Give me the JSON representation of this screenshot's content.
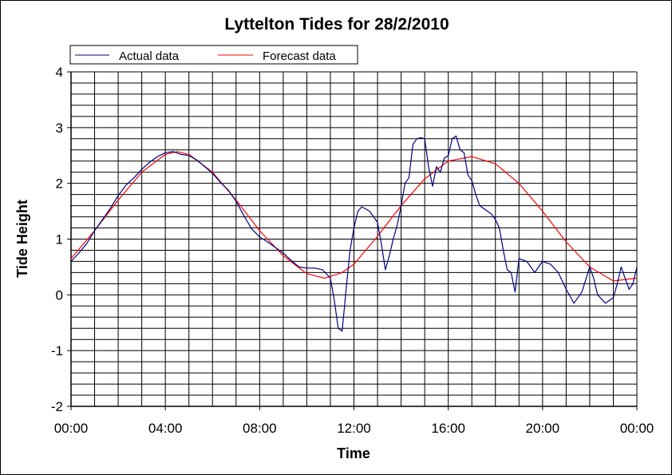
{
  "chart_data": {
    "type": "line",
    "title": "Lyttelton Tides for 28/2/2010",
    "xlabel": "Time",
    "ylabel": "Tide Height",
    "xlim": [
      "00:00",
      "24:00"
    ],
    "ylim": [
      -2,
      4
    ],
    "x_tick_labels": [
      "00:00",
      "04:00",
      "08:00",
      "12:00",
      "16:00",
      "20:00",
      "00:00"
    ],
    "x_tick_hours": [
      0,
      4,
      8,
      12,
      16,
      20,
      24
    ],
    "y_ticks": [
      4,
      3,
      2,
      1,
      0,
      -1,
      -2
    ],
    "grid": true,
    "legend_position": "top-left",
    "series": [
      {
        "name": "Actual data",
        "color": "#000080",
        "x": [
          "00:00",
          "00:20",
          "00:40",
          "01:00",
          "01:20",
          "01:40",
          "02:00",
          "02:20",
          "02:40",
          "03:00",
          "03:20",
          "03:40",
          "04:00",
          "04:20",
          "04:40",
          "05:00",
          "05:20",
          "05:40",
          "06:00",
          "06:20",
          "06:40",
          "07:00",
          "07:20",
          "07:40",
          "08:00",
          "08:20",
          "08:40",
          "09:00",
          "09:20",
          "09:40",
          "10:00",
          "10:20",
          "10:40",
          "11:00",
          "11:10",
          "11:20",
          "11:30",
          "11:40",
          "11:50",
          "12:00",
          "12:10",
          "12:20",
          "12:40",
          "13:00",
          "13:10",
          "13:20",
          "13:30",
          "13:40",
          "13:50",
          "14:00",
          "14:10",
          "14:20",
          "14:30",
          "14:40",
          "14:50",
          "15:00",
          "15:10",
          "15:20",
          "15:30",
          "15:40",
          "15:50",
          "16:00",
          "16:10",
          "16:20",
          "16:30",
          "16:40",
          "16:50",
          "17:00",
          "17:10",
          "17:20",
          "17:30",
          "17:40",
          "17:50",
          "18:00",
          "18:10",
          "18:20",
          "18:30",
          "18:40",
          "18:50",
          "19:00",
          "19:20",
          "19:40",
          "20:00",
          "20:20",
          "20:40",
          "21:00",
          "21:20",
          "21:40",
          "22:00",
          "22:10",
          "22:20",
          "22:40",
          "23:00",
          "23:10",
          "23:20",
          "23:30",
          "23:40",
          "23:50",
          "24:00"
        ],
        "y": [
          0.6,
          0.75,
          0.92,
          1.15,
          1.35,
          1.55,
          1.78,
          1.97,
          2.1,
          2.25,
          2.38,
          2.48,
          2.55,
          2.57,
          2.52,
          2.5,
          2.42,
          2.3,
          2.18,
          2.02,
          1.88,
          1.68,
          1.42,
          1.18,
          1.04,
          0.95,
          0.85,
          0.75,
          0.62,
          0.5,
          0.48,
          0.48,
          0.45,
          0.3,
          -0.1,
          -0.6,
          -0.65,
          0.1,
          0.8,
          1.2,
          1.5,
          1.58,
          1.5,
          1.3,
          0.9,
          0.45,
          0.7,
          1.0,
          1.25,
          1.6,
          2.0,
          2.1,
          2.7,
          2.8,
          2.82,
          2.8,
          2.3,
          1.95,
          2.3,
          2.2,
          2.45,
          2.5,
          2.8,
          2.85,
          2.6,
          2.55,
          2.15,
          2.05,
          1.8,
          1.6,
          1.55,
          1.5,
          1.45,
          1.35,
          1.2,
          0.8,
          0.45,
          0.4,
          0.05,
          0.65,
          0.6,
          0.4,
          0.6,
          0.55,
          0.4,
          0.1,
          -0.15,
          0.05,
          0.5,
          0.3,
          0.0,
          -0.15,
          -0.05,
          0.2,
          0.5,
          0.3,
          0.1,
          0.2,
          0.5
        ]
      },
      {
        "name": "Forecast data",
        "color": "#ff0000",
        "x": [
          "00:00",
          "01:00",
          "02:00",
          "03:00",
          "04:00",
          "04:30",
          "05:00",
          "06:00",
          "07:00",
          "08:00",
          "09:00",
          "10:00",
          "10:45",
          "11:30",
          "12:00",
          "13:00",
          "14:00",
          "15:00",
          "16:00",
          "17:00",
          "18:00",
          "19:00",
          "20:00",
          "21:00",
          "22:00",
          "23:00",
          "24:00"
        ],
        "y": [
          0.65,
          1.15,
          1.7,
          2.2,
          2.52,
          2.57,
          2.52,
          2.2,
          1.7,
          1.15,
          0.7,
          0.38,
          0.3,
          0.4,
          0.55,
          1.05,
          1.6,
          2.08,
          2.4,
          2.48,
          2.35,
          2.0,
          1.5,
          0.95,
          0.5,
          0.25,
          0.3
        ]
      }
    ]
  }
}
